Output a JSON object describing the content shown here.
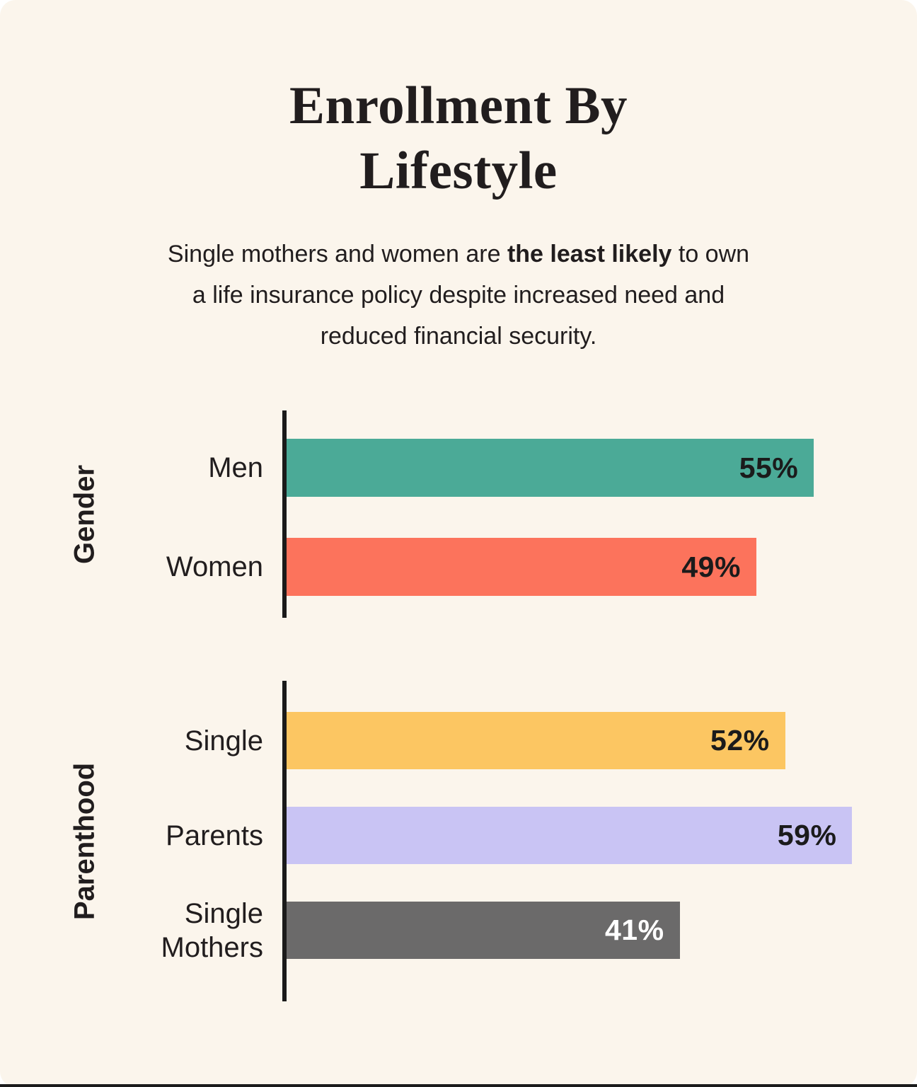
{
  "page": {
    "panel_background": "#FBF5EC",
    "outer_background": "#FFFFFF",
    "bottom_edge_color": "#1B1B1B",
    "text_color": "#211D1E"
  },
  "title": {
    "line1": "Enrollment By",
    "line2": "Lifestyle"
  },
  "subtitle": {
    "line1_normal": "Single mothers and women are ",
    "line1_bold": "the least likely",
    "line1_tail": " to own",
    "line2": "a life insurance policy despite increased need and",
    "line3": "reduced financial security.",
    "full_text": "Single mothers and women are the least likely to own a life insurance policy despite increased need and reduced financial security."
  },
  "chart_data": {
    "type": "bar",
    "orientation": "horizontal",
    "title": "Enrollment By Lifestyle",
    "value_unit": "%",
    "xlim": [
      0,
      100
    ],
    "grid": false,
    "value_axis_visible": false,
    "category_axis_line_color": "#1A1A1A",
    "groups": [
      {
        "group_label": "Gender",
        "bars": [
          {
            "category": "Men",
            "value": 55,
            "value_label": "55%",
            "bar_color": "#4BAA97",
            "value_label_color": "#1B1B1B"
          },
          {
            "category": "Women",
            "value": 49,
            "value_label": "49%",
            "bar_color": "#FC735C",
            "value_label_color": "#1B1B1B"
          }
        ]
      },
      {
        "group_label": "Parenthood",
        "bars": [
          {
            "category": "Single",
            "value": 52,
            "value_label": "52%",
            "bar_color": "#FCC662",
            "value_label_color": "#1B1B1B"
          },
          {
            "category": "Parents",
            "value": 59,
            "value_label": "59%",
            "bar_color": "#C9C4F4",
            "value_label_color": "#1B1B1B"
          },
          {
            "category": "Single Mothers",
            "value": 41,
            "value_label": "41%",
            "bar_color": "#6B6A6A",
            "value_label_color": "#FFFFFF"
          }
        ]
      }
    ]
  }
}
